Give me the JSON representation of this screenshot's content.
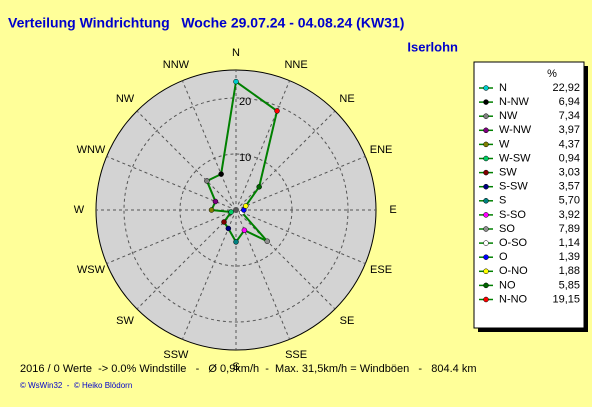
{
  "chart_data": {
    "type": "radar",
    "title": "Verteilung Windrichtung   Woche 29.07.24 - 04.08.24 (KW31)",
    "subtitle": "Iserlohn",
    "categories": [
      "N",
      "N-NW",
      "NW",
      "W-NW",
      "W",
      "W-SW",
      "SW",
      "S-SW",
      "S",
      "S-SO",
      "SO",
      "O-SO",
      "O",
      "O-NO",
      "NO",
      "N-NO"
    ],
    "values": [
      22.92,
      6.94,
      7.34,
      3.97,
      4.37,
      0.94,
      3.03,
      3.57,
      5.7,
      3.92,
      7.89,
      1.14,
      1.39,
      1.88,
      5.85,
      19.15
    ],
    "value_labels": [
      "22,92",
      "6,94",
      "7,34",
      "3,97",
      "4,37",
      "0,94",
      "3,03",
      "3,57",
      "5,70",
      "3,92",
      "7,89",
      "1,14",
      "1,39",
      "1,88",
      "5,85",
      "19,15"
    ],
    "marker_colors": [
      "#00cccc",
      "#000000",
      "#808080",
      "#800080",
      "#808000",
      "#00cc66",
      "#800000",
      "#000080",
      "#008080",
      "#ff00ff",
      "#909090",
      "#ffffff",
      "#0000ff",
      "#ffff00",
      "#006400",
      "#ff0000"
    ],
    "color": "#008000",
    "axis_labels": [
      "N",
      "NNE",
      "NE",
      "ENE",
      "E",
      "ESE",
      "SE",
      "SSE",
      "S",
      "SSW",
      "SW",
      "WSW",
      "W",
      "WNW",
      "NW",
      "NNW"
    ],
    "rlim": [
      0,
      25
    ],
    "rticks": [
      10,
      20
    ],
    "legend_header": "%",
    "footer": "2016 / 0 Werte  -> 0.0% Windstille   -   Ø 0,9km/h  -  Max. 31,5km/h = Windböen   -   804.4 km",
    "credits": "© WsWin32  -  © Heiko Blödorn"
  }
}
